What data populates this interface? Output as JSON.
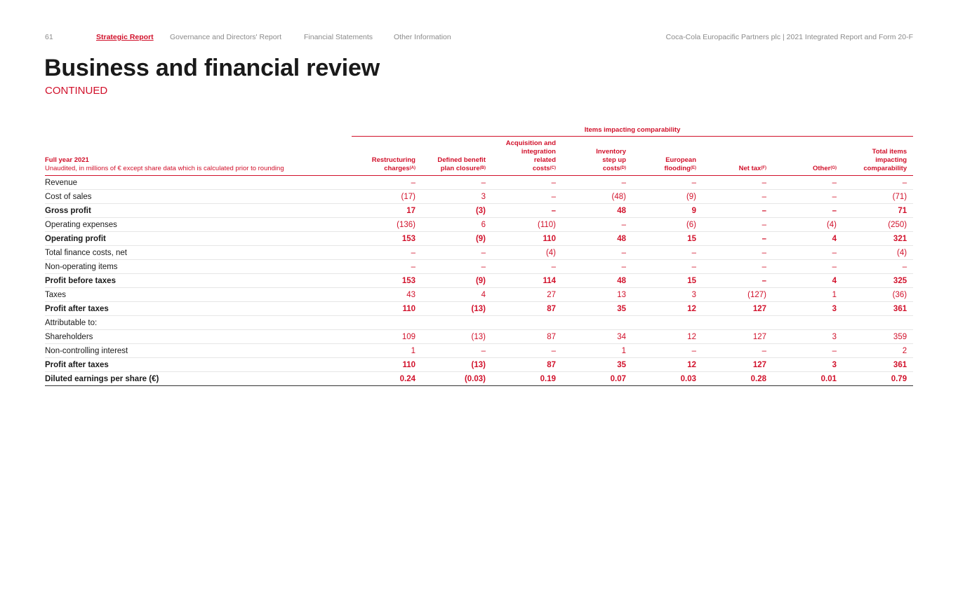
{
  "header": {
    "page_number": "61",
    "nav": [
      "Strategic Report",
      "Governance and Directors' Report",
      "Financial Statements",
      "Other Information"
    ],
    "document_title": "Coca-Cola Europacific Partners plc | 2021 Integrated Report and Form 20-F"
  },
  "title": "Business and financial review",
  "subtitle": "CONTINUED",
  "table": {
    "group_header": "Items impacting comparability",
    "first_col_title": "Full year 2021",
    "first_col_note": "Unaudited, in millions of € except share data which is calculated prior to rounding",
    "columns": [
      {
        "label": "Restructuring charges",
        "note": "(A)"
      },
      {
        "label": "Defined benefit plan closure",
        "note": "(B)"
      },
      {
        "label": "Acquisition and integration related costs",
        "note": "(C)"
      },
      {
        "label": "Inventory step up costs",
        "note": "(D)"
      },
      {
        "label": "European flooding",
        "note": "(E)"
      },
      {
        "label": "Net tax",
        "note": "(F)"
      },
      {
        "label": "Other",
        "note": "(G)"
      },
      {
        "label": "Total items impacting comparability",
        "note": ""
      }
    ],
    "rows": [
      {
        "label": "Revenue",
        "bold": false,
        "values": [
          "–",
          "–",
          "–",
          "–",
          "–",
          "–",
          "–",
          "–"
        ]
      },
      {
        "label": "Cost of sales",
        "bold": false,
        "values": [
          "(17)",
          "3",
          "–",
          "(48)",
          "(9)",
          "–",
          "–",
          "(71)"
        ]
      },
      {
        "label": "Gross profit",
        "bold": true,
        "values": [
          "17",
          "(3)",
          "–",
          "48",
          "9",
          "–",
          "–",
          "71"
        ]
      },
      {
        "label": "Operating expenses",
        "bold": false,
        "values": [
          "(136)",
          "6",
          "(110)",
          "–",
          "(6)",
          "–",
          "(4)",
          "(250)"
        ]
      },
      {
        "label": "Operating profit",
        "bold": true,
        "values": [
          "153",
          "(9)",
          "110",
          "48",
          "15",
          "–",
          "4",
          "321"
        ]
      },
      {
        "label": "Total finance costs, net",
        "bold": false,
        "values": [
          "–",
          "–",
          "(4)",
          "–",
          "–",
          "–",
          "–",
          "(4)"
        ]
      },
      {
        "label": "Non-operating items",
        "bold": false,
        "values": [
          "–",
          "–",
          "–",
          "–",
          "–",
          "–",
          "–",
          "–"
        ]
      },
      {
        "label": "Profit before taxes",
        "bold": true,
        "values": [
          "153",
          "(9)",
          "114",
          "48",
          "15",
          "–",
          "4",
          "325"
        ]
      },
      {
        "label": "Taxes",
        "bold": false,
        "values": [
          "43",
          "4",
          "27",
          "13",
          "3",
          "(127)",
          "1",
          "(36)"
        ]
      },
      {
        "label": "Profit after taxes",
        "bold": true,
        "values": [
          "110",
          "(13)",
          "87",
          "35",
          "12",
          "127",
          "3",
          "361"
        ]
      },
      {
        "label": "Attributable to:",
        "bold": false,
        "values": [
          "",
          "",
          "",
          "",
          "",
          "",
          "",
          ""
        ]
      },
      {
        "label": "Shareholders",
        "bold": false,
        "values": [
          "109",
          "(13)",
          "87",
          "34",
          "12",
          "127",
          "3",
          "359"
        ]
      },
      {
        "label": "Non-controlling interest",
        "bold": false,
        "values": [
          "1",
          "–",
          "–",
          "1",
          "–",
          "–",
          "–",
          "2"
        ]
      },
      {
        "label": "Profit after taxes",
        "bold": true,
        "values": [
          "110",
          "(13)",
          "87",
          "35",
          "12",
          "127",
          "3",
          "361"
        ]
      },
      {
        "label": "Diluted earnings per share (€)",
        "bold": true,
        "values": [
          "0.24",
          "(0.03)",
          "0.19",
          "0.07",
          "0.03",
          "0.28",
          "0.01",
          "0.79"
        ]
      }
    ]
  }
}
